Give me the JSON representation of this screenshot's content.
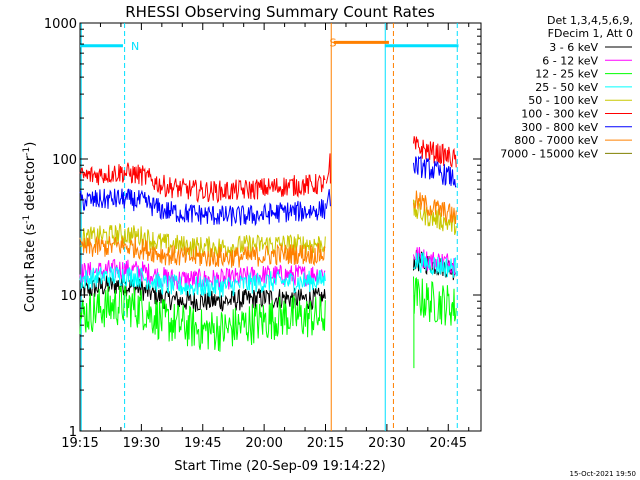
{
  "chart_data": {
    "type": "line",
    "title": "RHESSI Observing Summary Count Rates",
    "xlabel": "Start Time (20-Sep-09 19:14:22)",
    "ylabel_main": "Count Rate (s",
    "ylabel_sup1": "-1",
    "ylabel_mid": " detector",
    "ylabel_sup2": "-1",
    "ylabel_end": ")",
    "yscale": "log",
    "ylim": [
      1,
      1000
    ],
    "xlim_min": [
      1155,
      1253
    ],
    "x_ticks": [
      {
        "min": 1155,
        "label": "19:15"
      },
      {
        "min": 1170,
        "label": "19:30"
      },
      {
        "min": 1185,
        "label": "19:45"
      },
      {
        "min": 1200,
        "label": "20:00"
      },
      {
        "min": 1215,
        "label": "20:15"
      },
      {
        "min": 1230,
        "label": "20:30"
      },
      {
        "min": 1245,
        "label": "20:45"
      }
    ],
    "y_ticks": [
      {
        "v": 1,
        "label": "1"
      },
      {
        "v": 10,
        "label": "10"
      },
      {
        "v": 100,
        "label": "100"
      },
      {
        "v": 1000,
        "label": "1000"
      }
    ],
    "legend_header": [
      "Det 1,3,4,5,6,9,",
      "FDecim 1, Att 0"
    ],
    "legend_position": "outside-right",
    "series": [
      {
        "name": "3 - 6 keV",
        "color": "#000000",
        "points_a": [
          [
            1155,
            10.5
          ],
          [
            1160,
            11.5
          ],
          [
            1165,
            12
          ],
          [
            1170,
            11
          ],
          [
            1175,
            9.5
          ],
          [
            1180,
            9
          ],
          [
            1185,
            9
          ],
          [
            1190,
            9
          ],
          [
            1195,
            9.2
          ],
          [
            1200,
            9.5
          ],
          [
            1205,
            9.5
          ],
          [
            1210,
            9.3
          ],
          [
            1215,
            9.5
          ]
        ],
        "points_b": [
          [
            1236.5,
            18
          ],
          [
            1240,
            17
          ],
          [
            1245,
            16
          ],
          [
            1247,
            15
          ]
        ]
      },
      {
        "name": "6 - 12 keV",
        "color": "#ff00ff",
        "points_a": [
          [
            1155,
            14.5
          ],
          [
            1160,
            15
          ],
          [
            1165,
            15.5
          ],
          [
            1170,
            15
          ],
          [
            1175,
            13.5
          ],
          [
            1180,
            13
          ],
          [
            1185,
            13
          ],
          [
            1190,
            13
          ],
          [
            1195,
            13.5
          ],
          [
            1200,
            14
          ],
          [
            1205,
            14
          ],
          [
            1210,
            14
          ],
          [
            1215,
            14.5
          ]
        ],
        "points_b": [
          [
            1236.5,
            20
          ],
          [
            1240,
            18
          ],
          [
            1245,
            17.5
          ],
          [
            1247,
            17
          ]
        ]
      },
      {
        "name": "12 - 25 keV",
        "color": "#00ff00",
        "points_a": [
          [
            1155,
            7
          ],
          [
            1160,
            8
          ],
          [
            1165,
            8.5
          ],
          [
            1170,
            8
          ],
          [
            1175,
            6.5
          ],
          [
            1180,
            6
          ],
          [
            1185,
            5.5
          ],
          [
            1190,
            5.5
          ],
          [
            1195,
            6
          ],
          [
            1200,
            6.5
          ],
          [
            1205,
            7
          ],
          [
            1210,
            6.8
          ],
          [
            1215,
            7
          ]
        ],
        "points_b": [
          [
            1236.5,
            10
          ],
          [
            1240,
            9
          ],
          [
            1245,
            8.5
          ],
          [
            1247,
            8
          ]
        ]
      },
      {
        "name": "25 - 50 keV",
        "color": "#00ffff",
        "points_a": [
          [
            1155,
            13
          ],
          [
            1160,
            13.5
          ],
          [
            1165,
            14
          ],
          [
            1170,
            13.5
          ],
          [
            1175,
            12
          ],
          [
            1180,
            11.5
          ],
          [
            1185,
            11.5
          ],
          [
            1190,
            11.5
          ],
          [
            1195,
            12
          ],
          [
            1200,
            12.5
          ],
          [
            1205,
            12.5
          ],
          [
            1210,
            12.5
          ],
          [
            1215,
            13
          ]
        ],
        "points_b": [
          [
            1236.5,
            18
          ],
          [
            1240,
            17
          ],
          [
            1245,
            16
          ],
          [
            1247,
            16
          ]
        ]
      },
      {
        "name": "50 - 100 keV",
        "color": "#c8c800",
        "points_a": [
          [
            1155,
            26
          ],
          [
            1160,
            27
          ],
          [
            1165,
            28
          ],
          [
            1170,
            27
          ],
          [
            1175,
            24
          ],
          [
            1180,
            23
          ],
          [
            1185,
            22.5
          ],
          [
            1190,
            22.5
          ],
          [
            1195,
            23
          ],
          [
            1200,
            23.5
          ],
          [
            1205,
            23.5
          ],
          [
            1210,
            23.5
          ],
          [
            1215,
            24
          ]
        ],
        "points_b": [
          [
            1236.5,
            42
          ],
          [
            1240,
            38
          ],
          [
            1245,
            34
          ],
          [
            1247,
            33
          ]
        ]
      },
      {
        "name": "100 - 300 keV",
        "color": "#ff0000",
        "points_a": [
          [
            1155,
            74
          ],
          [
            1160,
            77
          ],
          [
            1165,
            80
          ],
          [
            1170,
            76
          ],
          [
            1175,
            64
          ],
          [
            1180,
            60
          ],
          [
            1185,
            58
          ],
          [
            1190,
            58
          ],
          [
            1195,
            59
          ],
          [
            1200,
            61
          ],
          [
            1205,
            63
          ],
          [
            1210,
            64
          ],
          [
            1215,
            66
          ]
        ],
        "points_b": [
          [
            1236.5,
            125
          ],
          [
            1240,
            115
          ],
          [
            1245,
            104
          ],
          [
            1247,
            98
          ]
        ]
      },
      {
        "name": "300 - 800 keV",
        "color": "#0000ff",
        "points_a": [
          [
            1155,
            49
          ],
          [
            1160,
            50
          ],
          [
            1165,
            51
          ],
          [
            1170,
            49
          ],
          [
            1175,
            42
          ],
          [
            1180,
            40
          ],
          [
            1185,
            39
          ],
          [
            1190,
            38
          ],
          [
            1195,
            38
          ],
          [
            1200,
            39
          ],
          [
            1205,
            41
          ],
          [
            1210,
            41
          ],
          [
            1215,
            43
          ]
        ],
        "points_b": [
          [
            1236.5,
            90
          ],
          [
            1240,
            85
          ],
          [
            1245,
            75
          ],
          [
            1247,
            70
          ]
        ]
      },
      {
        "name": "800 - 7000 keV",
        "color": "#ff8000",
        "points_a": [
          [
            1155,
            22
          ],
          [
            1160,
            22.5
          ],
          [
            1165,
            23
          ],
          [
            1170,
            22
          ],
          [
            1175,
            20
          ],
          [
            1180,
            19
          ],
          [
            1185,
            19
          ],
          [
            1190,
            19
          ],
          [
            1195,
            19
          ],
          [
            1200,
            19.5
          ],
          [
            1205,
            20
          ],
          [
            1210,
            20
          ],
          [
            1215,
            20
          ]
        ],
        "points_b": [
          [
            1236.5,
            50
          ],
          [
            1240,
            45
          ],
          [
            1245,
            40
          ],
          [
            1247,
            37
          ]
        ]
      },
      {
        "name": "7000 - 15000 keV",
        "color": "#808000",
        "points_a": [],
        "points_b": []
      }
    ],
    "markers": [
      {
        "letter": "N",
        "color": "#00e0ff",
        "y": 680,
        "bar_from": 1155,
        "bar_to": 1165.5,
        "letter_at": 1166.5,
        "dashed_line": 1166
      },
      {
        "letter": "S",
        "color": "#ff8000",
        "y": 720,
        "bar_from": 1217,
        "bar_to": 1230.5,
        "letter_at": 1215,
        "dashed_line": 1234
      }
    ],
    "cyan_bar_right": {
      "from": 1229.5,
      "to": 1247.5,
      "y": 680
    },
    "vertical_lines": [
      {
        "min": 1155.3,
        "color": "#00e0ff",
        "dashed": false
      },
      {
        "min": 1165.9,
        "color": "#00e0ff",
        "dashed": true
      },
      {
        "min": 1216.4,
        "color": "#ff8000",
        "dashed": false
      },
      {
        "min": 1229.6,
        "color": "#00e0ff",
        "dashed": false
      },
      {
        "min": 1231.6,
        "color": "#ff8000",
        "dashed": true
      },
      {
        "min": 1247.2,
        "color": "#00e0ff",
        "dashed": true
      }
    ],
    "grid": false,
    "footer_timestamp": "15-Oct-2021 19:50"
  }
}
